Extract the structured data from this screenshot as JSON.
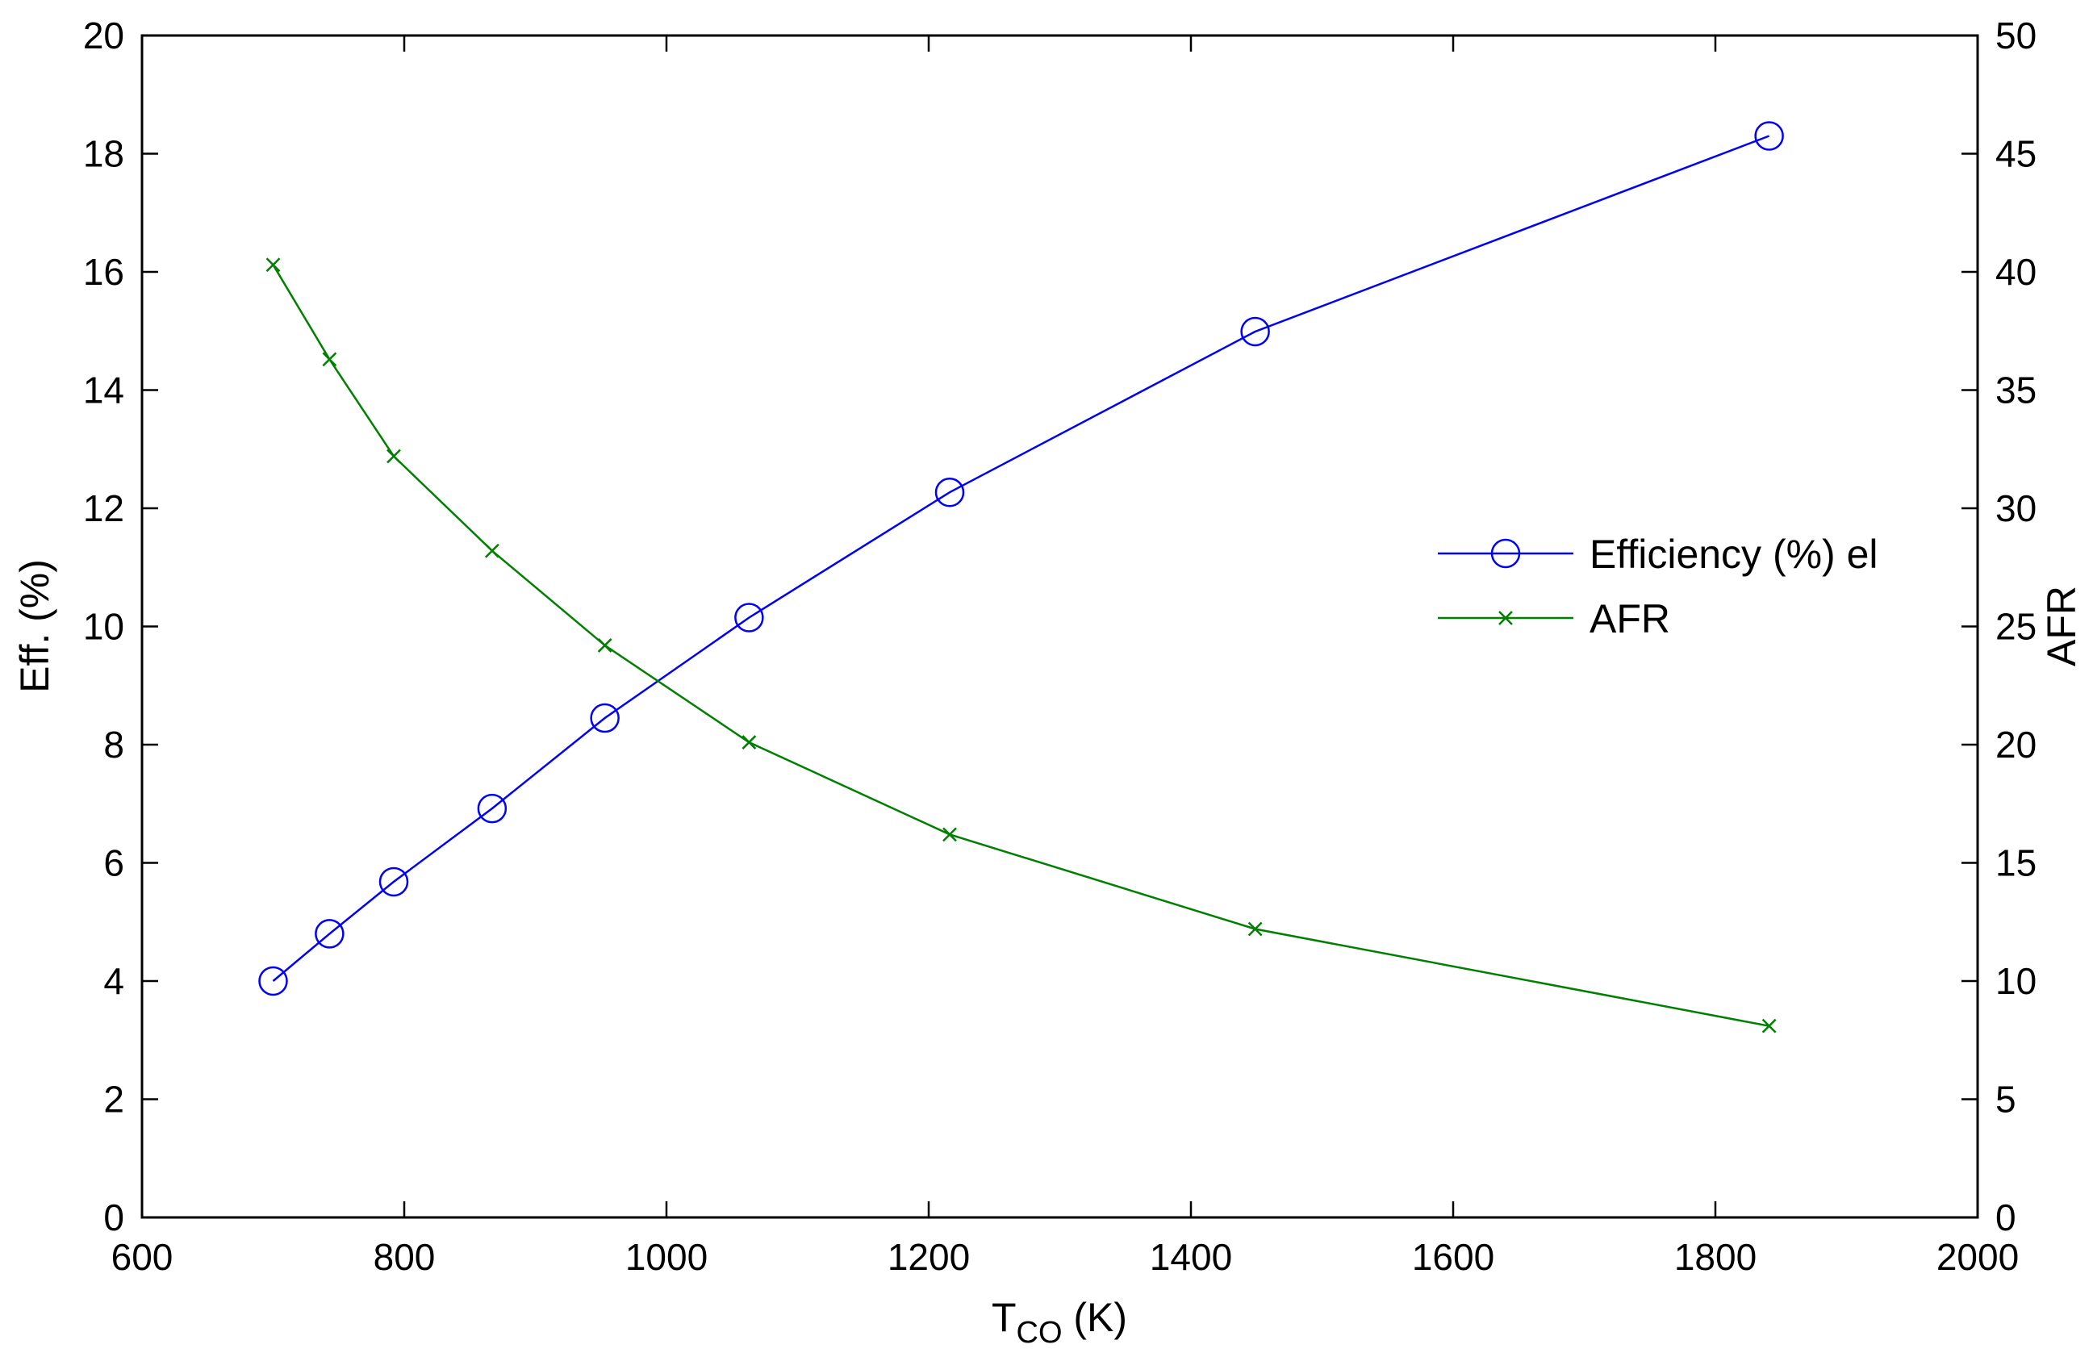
{
  "chart_data": {
    "type": "line",
    "xlabel": {
      "main": "T",
      "sub": "CO",
      "unit": " (K)"
    },
    "ylabel_left": "Eff. (%)",
    "ylabel_right": "AFR",
    "xlim": [
      600,
      2000
    ],
    "ylim_left": [
      0,
      20
    ],
    "ylim_right": [
      0,
      50
    ],
    "x_ticks": [
      "600",
      "800",
      "1000",
      "1200",
      "1400",
      "1600",
      "1800",
      "2000"
    ],
    "y_left_ticks": [
      "0",
      "2",
      "4",
      "6",
      "8",
      "10",
      "12",
      "14",
      "16",
      "18",
      "20"
    ],
    "y_right_ticks": [
      "0",
      "5",
      "10",
      "15",
      "20",
      "25",
      "30",
      "35",
      "40",
      "45",
      "50"
    ],
    "grid": false,
    "legend_position": "center-right",
    "series": [
      {
        "name": "Efficiency (%) el",
        "axis": "left",
        "color": "#0000ff",
        "marker": "circle",
        "x": [
          700,
          743,
          792,
          867,
          953,
          1063,
          1216,
          1449,
          1841
        ],
        "y": [
          4.0,
          4.8,
          5.68,
          6.92,
          8.45,
          10.15,
          12.27,
          14.99,
          18.3
        ]
      },
      {
        "name": "AFR",
        "axis": "right",
        "color": "#008000",
        "marker": "x",
        "x": [
          700,
          743,
          792,
          867,
          953,
          1063,
          1216,
          1449,
          1841
        ],
        "y": [
          40.3,
          36.3,
          32.2,
          28.2,
          24.2,
          20.1,
          16.2,
          12.2,
          8.1
        ]
      }
    ]
  }
}
